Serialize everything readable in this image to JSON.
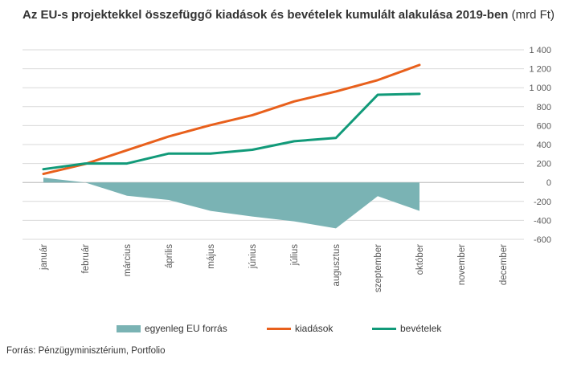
{
  "title": {
    "bold": "Az EU-s projektekkel összefüggő kiadások és bevételek kumulált alakulása 2019-ben",
    "normal": "(mrd Ft)"
  },
  "source": "Forrás: Pénzügyminisztérium,  Portfolio",
  "colors": {
    "balance": "#7ab3b4",
    "expenses": "#e8601c",
    "revenues": "#119a79",
    "grid": "#d9d9d9",
    "text": "#595959"
  },
  "chart_data": {
    "type": "line",
    "title": "Az EU-s projektekkel összefüggő kiadások és bevételek kumulált alakulása 2019-ben (mrd Ft)",
    "categories": [
      "január",
      "február",
      "március",
      "április",
      "május",
      "június",
      "július",
      "augusztus",
      "szeptember",
      "október",
      "november",
      "december"
    ],
    "y_axis": {
      "position": "right",
      "min": -600,
      "max": 1400,
      "step": 200,
      "tick_labels": [
        "-600",
        "-400",
        "-200",
        "0",
        "200",
        "400",
        "600",
        "800",
        "1 000",
        "1 200",
        "1 400"
      ]
    },
    "grid": true,
    "legend_position": "bottom",
    "series": [
      {
        "name": "egyenleg EU forrás",
        "kind": "area",
        "color": "#7ab3b4",
        "values": [
          50,
          0,
          -140,
          -185,
          -300,
          -360,
          -410,
          -485,
          -145,
          -300,
          null,
          null
        ]
      },
      {
        "name": "kiadások",
        "kind": "line",
        "color": "#e8601c",
        "values": [
          90,
          195,
          340,
          485,
          605,
          710,
          855,
          960,
          1080,
          1240,
          null,
          null
        ]
      },
      {
        "name": "bevételek",
        "kind": "line",
        "color": "#119a79",
        "values": [
          140,
          200,
          200,
          305,
          305,
          345,
          435,
          470,
          925,
          935,
          null,
          null
        ]
      }
    ]
  }
}
